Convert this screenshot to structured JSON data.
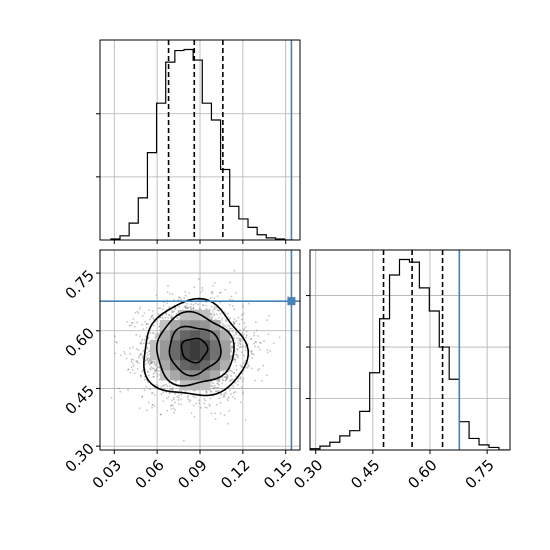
{
  "chart_data": [
    {
      "type": "histogram",
      "panel": "top-left",
      "parameter_index": 0,
      "xlim": [
        0.02,
        0.16
      ],
      "bins": [
        0.0276,
        0.034,
        0.0404,
        0.0468,
        0.0532,
        0.0596,
        0.066,
        0.0724,
        0.0788,
        0.0852,
        0.0916,
        0.098,
        0.1044,
        0.1108,
        0.1172,
        0.1236,
        0.13,
        0.1364,
        0.1428,
        0.1492,
        0.1556
      ],
      "counts": [
        1,
        4,
        16,
        40,
        83,
        130,
        169,
        180,
        181,
        171,
        130,
        114,
        67,
        32,
        20,
        12,
        5,
        2,
        1,
        0
      ],
      "quantiles": [
        0.068,
        0.086,
        0.106
      ],
      "truth": 0.154,
      "grid": true
    },
    {
      "type": "scatter-density-contour",
      "panel": "bottom-left",
      "x_parameter": 0,
      "y_parameter": 1,
      "xlim": [
        0.02,
        0.16
      ],
      "ylim": [
        0.29,
        0.81
      ],
      "x_ticks": [
        "0.03",
        "0.06",
        "0.09",
        "0.12",
        "0.15"
      ],
      "y_ticks": [
        "0.30",
        "0.45",
        "0.60",
        "0.75"
      ],
      "center": [
        0.086,
        0.55
      ],
      "spread": [
        0.018,
        0.062
      ],
      "contour_levels": [
        0.5,
        1.0,
        1.5,
        2.0
      ],
      "truth": [
        0.154,
        0.677
      ],
      "grid": true
    },
    {
      "type": "histogram",
      "panel": "bottom-right",
      "parameter_index": 1,
      "xlim": [
        0.285,
        0.81
      ],
      "x_ticks": [
        "0.30",
        "0.45",
        "0.60",
        "0.75"
      ],
      "bins": [
        0.285,
        0.3111,
        0.3372,
        0.3633,
        0.3894,
        0.4155,
        0.4416,
        0.4677,
        0.4938,
        0.5199,
        0.546,
        0.5721,
        0.5982,
        0.6243,
        0.6504,
        0.6765,
        0.7026,
        0.7287,
        0.7548,
        0.7809,
        0.807
      ],
      "counts": [
        1,
        3,
        6,
        11,
        15,
        30,
        60,
        102,
        136,
        148,
        146,
        126,
        108,
        80,
        55,
        22,
        9,
        4,
        2,
        0
      ],
      "quantiles": [
        0.478,
        0.553,
        0.633
      ],
      "truth": 0.677,
      "grid": true
    }
  ],
  "colors": {
    "line": "#000000",
    "truth": "#4682b4",
    "grid": "#b0b0b0",
    "points": "#7f7f7f"
  }
}
